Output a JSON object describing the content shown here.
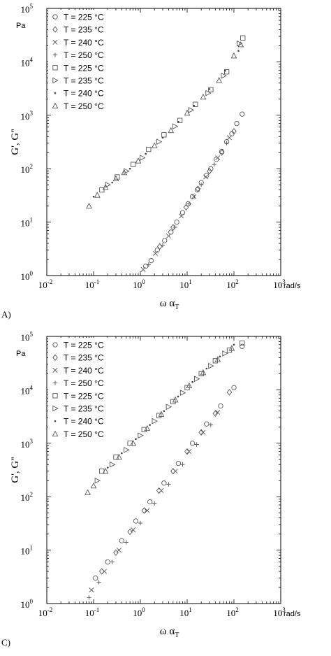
{
  "chart_data": [
    {
      "panel": "A)",
      "type": "scatter",
      "xlabel": "ω α",
      "xlabel_sub": "T",
      "ylabel": "G', G''",
      "x_unit": "rad/s",
      "y_unit": "Pa",
      "x_scale": "log",
      "y_scale": "log",
      "xlim": [
        0.01,
        1000
      ],
      "ylim": [
        1,
        100000
      ],
      "x_ticks": [
        {
          "b": "10",
          "e": "-2"
        },
        {
          "b": "10",
          "e": "-1"
        },
        {
          "b": "10",
          "e": "0"
        },
        {
          "b": "10",
          "e": "1"
        },
        {
          "b": "10",
          "e": "2"
        },
        {
          "b": "10",
          "e": "3"
        }
      ],
      "y_ticks": [
        {
          "b": "10",
          "e": "0"
        },
        {
          "b": "10",
          "e": "1"
        },
        {
          "b": "10",
          "e": "2"
        },
        {
          "b": "10",
          "e": "3"
        },
        {
          "b": "10",
          "e": "4"
        },
        {
          "b": "10",
          "e": "5"
        }
      ],
      "legend_position": "top-left",
      "series": [
        {
          "name": "T = 225 °C",
          "marker": "circle",
          "points": [
            [
              1.3,
              1.5
            ],
            [
              2.3,
              3.0
            ],
            [
              4.5,
              6.5
            ],
            [
              8,
              15
            ],
            [
              13,
              30
            ],
            [
              20,
              55
            ],
            [
              32,
              100
            ],
            [
              55,
              210
            ],
            [
              90,
              450
            ],
            [
              150,
              1050
            ],
            [
              1.7,
              1.9
            ],
            [
              3.3,
              4.5
            ],
            [
              6,
              10
            ],
            [
              10.5,
              22
            ],
            [
              16.5,
              40
            ],
            [
              26,
              75
            ],
            [
              42,
              150
            ],
            [
              70,
              320
            ],
            [
              115,
              700
            ]
          ]
        },
        {
          "name": "T = 235 °C",
          "marker": "diamond",
          "points": [
            [
              2.6,
              3.5
            ],
            [
              5,
              8
            ],
            [
              9.5,
              19
            ],
            [
              17,
              42
            ],
            [
              30,
              90
            ],
            [
              55,
              200
            ],
            [
              100,
              500
            ]
          ]
        },
        {
          "name": "T = 240 °C",
          "marker": "x",
          "points": [
            [
              1.15,
              1.3
            ],
            [
              2.1,
              2.6
            ],
            [
              4,
              5.5
            ],
            [
              7.5,
              13
            ],
            [
              14,
              30
            ],
            [
              25,
              70
            ],
            [
              45,
              160
            ],
            [
              80,
              380
            ]
          ]
        },
        {
          "name": "T = 250 °C",
          "marker": "plus",
          "points": [
            [
              1.5,
              1.6
            ],
            [
              3,
              3.7
            ],
            [
              5.5,
              8
            ],
            [
              11,
              22
            ],
            [
              20,
              50
            ],
            [
              38,
              120
            ],
            [
              70,
              300
            ]
          ]
        },
        {
          "name": "T = 225 °C",
          "marker": "square",
          "points": [
            [
              0.15,
              40
            ],
            [
              0.32,
              70
            ],
            [
              0.7,
              120
            ],
            [
              1.5,
              230
            ],
            [
              3.2,
              430
            ],
            [
              7,
              800
            ],
            [
              15,
              1600
            ],
            [
              32,
              3000
            ],
            [
              70,
              6500
            ],
            [
              155,
              28000
            ]
          ]
        },
        {
          "name": "T = 235 °C",
          "marker": "triangle-right",
          "points": [
            [
              0.2,
              50
            ],
            [
              0.5,
              90
            ],
            [
              1.1,
              160
            ],
            [
              2.5,
              320
            ],
            [
              5.5,
              620
            ],
            [
              12,
              1250
            ],
            [
              28,
              2600
            ],
            [
              60,
              5500
            ],
            [
              130,
              22000
            ]
          ]
        },
        {
          "name": "T = 240 °C",
          "marker": "dot",
          "points": [
            [
              0.1,
              30
            ],
            [
              0.25,
              55
            ],
            [
              0.6,
              100
            ],
            [
              1.3,
              190
            ],
            [
              3,
              380
            ],
            [
              6.5,
              750
            ],
            [
              14,
              1500
            ],
            [
              30,
              3100
            ],
            [
              65,
              6800
            ],
            [
              125,
              16000
            ]
          ]
        },
        {
          "name": "T = 250 °C",
          "marker": "triangle-up",
          "points": [
            [
              0.08,
              20
            ],
            [
              0.12,
              32
            ],
            [
              0.18,
              45
            ],
            [
              0.3,
              65
            ],
            [
              0.45,
              85
            ],
            [
              0.9,
              140
            ],
            [
              2,
              270
            ],
            [
              4.5,
              520
            ],
            [
              10,
              1100
            ],
            [
              22,
              2200
            ],
            [
              48,
              4500
            ],
            [
              100,
              13000
            ],
            [
              140,
              21000
            ]
          ]
        }
      ]
    },
    {
      "panel": "C)",
      "type": "scatter",
      "xlabel": "ω α",
      "xlabel_sub": "T",
      "ylabel": "G', G''",
      "x_unit": "rad/s",
      "y_unit": "Pa",
      "x_scale": "log",
      "y_scale": "log",
      "xlim": [
        0.01,
        1000
      ],
      "ylim": [
        1,
        100000
      ],
      "x_ticks": [
        {
          "b": "10",
          "e": "-2"
        },
        {
          "b": "10",
          "e": "-1"
        },
        {
          "b": "10",
          "e": "0"
        },
        {
          "b": "10",
          "e": "1"
        },
        {
          "b": "10",
          "e": "2"
        },
        {
          "b": "10",
          "e": "3"
        }
      ],
      "y_ticks": [
        {
          "b": "10",
          "e": "0"
        },
        {
          "b": "10",
          "e": "1"
        },
        {
          "b": "10",
          "e": "2"
        },
        {
          "b": "10",
          "e": "3"
        },
        {
          "b": "10",
          "e": "4"
        },
        {
          "b": "10",
          "e": "5"
        }
      ],
      "legend_position": "top-left",
      "series": [
        {
          "name": "T = 225 °C",
          "marker": "circle",
          "points": [
            [
              0.11,
              3
            ],
            [
              0.2,
              6
            ],
            [
              0.4,
              15
            ],
            [
              0.8,
              35
            ],
            [
              1.6,
              80
            ],
            [
              3.2,
              180
            ],
            [
              6.5,
              420
            ],
            [
              13,
              1000
            ],
            [
              26,
              2300
            ],
            [
              52,
              5000
            ],
            [
              100,
              11000
            ],
            [
              150,
              65000
            ]
          ]
        },
        {
          "name": "T = 235 °C",
          "marker": "diamond",
          "points": [
            [
              0.15,
              4
            ],
            [
              0.3,
              9
            ],
            [
              0.6,
              22
            ],
            [
              1.2,
              55
            ],
            [
              2.5,
              130
            ],
            [
              5,
              300
            ],
            [
              10,
              700
            ],
            [
              20,
              1600
            ],
            [
              40,
              3600
            ],
            [
              80,
              9000
            ]
          ]
        },
        {
          "name": "T = 240 °C",
          "marker": "x",
          "points": [
            [
              0.09,
              1.8
            ],
            [
              0.17,
              4
            ],
            [
              0.35,
              10
            ],
            [
              0.7,
              24
            ],
            [
              1.4,
              55
            ],
            [
              2.8,
              130
            ],
            [
              5.6,
              300
            ],
            [
              11,
              700
            ],
            [
              22,
              1600
            ],
            [
              45,
              3800
            ]
          ]
        },
        {
          "name": "T = 250 °C",
          "marker": "plus",
          "points": [
            [
              0.08,
              1.3
            ],
            [
              0.13,
              2.5
            ],
            [
              0.25,
              6
            ],
            [
              0.5,
              14
            ],
            [
              1,
              32
            ],
            [
              2,
              75
            ],
            [
              4,
              170
            ],
            [
              8,
              400
            ],
            [
              16,
              950
            ],
            [
              32,
              2200
            ]
          ]
        },
        {
          "name": "T = 225 °C",
          "marker": "square",
          "points": [
            [
              0.15,
              300
            ],
            [
              0.3,
              550
            ],
            [
              0.6,
              1000
            ],
            [
              1.2,
              1800
            ],
            [
              2.5,
              3300
            ],
            [
              5,
              6000
            ],
            [
              10,
              11000
            ],
            [
              20,
              20000
            ],
            [
              40,
              35000
            ],
            [
              80,
              55000
            ],
            [
              150,
              75000
            ]
          ]
        },
        {
          "name": "T = 235 °C",
          "marker": "triangle-right",
          "points": [
            [
              0.12,
              200
            ],
            [
              0.25,
              400
            ],
            [
              0.5,
              750
            ],
            [
              1,
              1400
            ],
            [
              2,
              2600
            ],
            [
              4,
              4800
            ],
            [
              8,
              8800
            ],
            [
              16,
              16000
            ],
            [
              32,
              28000
            ],
            [
              64,
              48000
            ]
          ]
        },
        {
          "name": "T = 240 °C",
          "marker": "dot",
          "points": [
            [
              0.2,
              350
            ],
            [
              0.4,
              650
            ],
            [
              0.8,
              1200
            ],
            [
              1.6,
              2200
            ],
            [
              3.2,
              4000
            ],
            [
              6.4,
              7500
            ],
            [
              13,
              14000
            ],
            [
              26,
              25000
            ],
            [
              50,
              42000
            ],
            [
              100,
              70000
            ]
          ]
        },
        {
          "name": "T = 250 °C",
          "marker": "triangle-up",
          "points": [
            [
              0.075,
              120
            ],
            [
              0.1,
              160
            ],
            [
              0.18,
              300
            ],
            [
              0.35,
              550
            ],
            [
              0.7,
              1000
            ],
            [
              1.4,
              1900
            ],
            [
              2.8,
              3500
            ],
            [
              5.6,
              6500
            ],
            [
              11,
              12000
            ],
            [
              22,
              21000
            ],
            [
              45,
              37000
            ],
            [
              90,
              60000
            ]
          ]
        }
      ]
    }
  ]
}
